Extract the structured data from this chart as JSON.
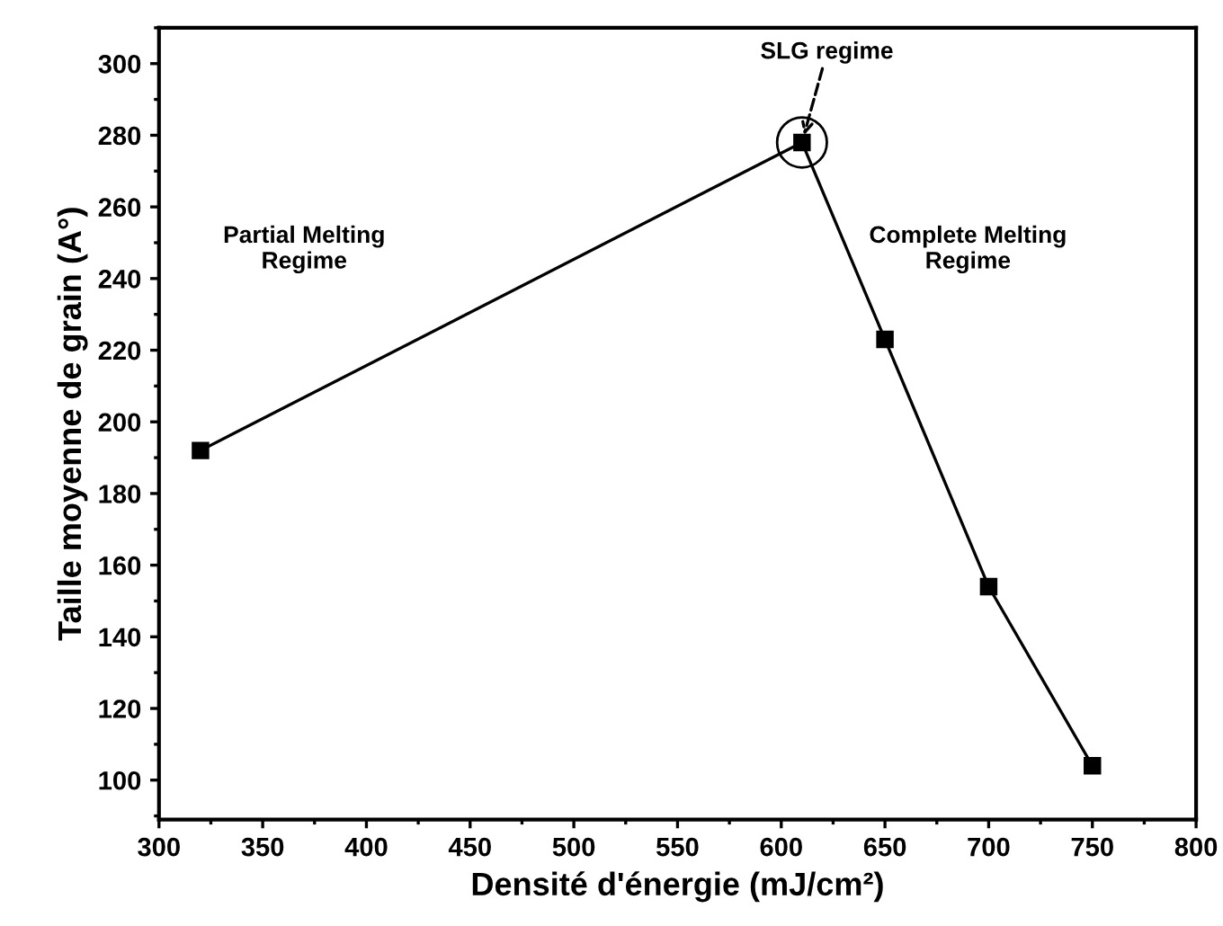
{
  "chart_data": {
    "type": "line",
    "xlabel": "Densité d'énergie (mJ/cm²)",
    "ylabel": "Taille moyenne de grain (A°)",
    "x": [
      320,
      610,
      650,
      700,
      750
    ],
    "series": [
      {
        "color": "#000000",
        "values": [
          192,
          278,
          223,
          154,
          104
        ]
      }
    ],
    "marker": "square",
    "line_style": "solid",
    "grid": false,
    "legend": false,
    "xlim": [
      300,
      800
    ],
    "xticks": [
      300,
      350,
      400,
      450,
      500,
      550,
      600,
      650,
      700,
      750,
      800
    ],
    "ylim": [
      89,
      310
    ],
    "yticks": [
      100,
      120,
      140,
      160,
      180,
      200,
      220,
      240,
      260,
      280,
      300
    ],
    "annotations": [
      {
        "text": "SLG regime",
        "x": 610,
        "y": 278
      },
      "Partial Melting\nRegime",
      "Complete Melting\nRegime"
    ]
  }
}
